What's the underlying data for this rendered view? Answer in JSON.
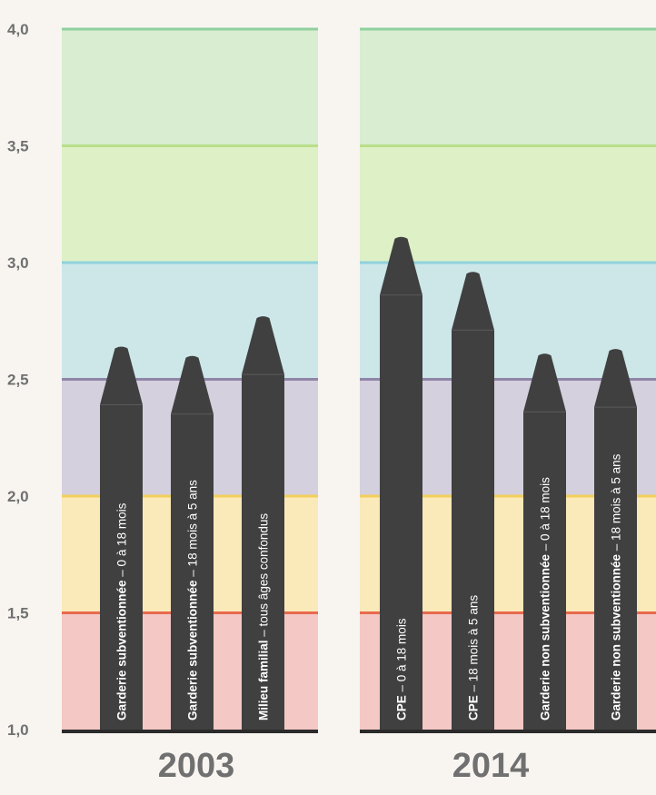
{
  "chart_data": {
    "type": "bar",
    "y_ticks": [
      "1,0",
      "1,5",
      "2,0",
      "2,5",
      "3,0",
      "3,5",
      "4,0"
    ],
    "ylim": [
      1.0,
      4.0
    ],
    "zone_colors": [
      "#f2b8b5",
      "#fbe4a6",
      "#c9c3d6",
      "#bfe2e6",
      "#d6edb7",
      "#cfe9c6"
    ],
    "zone_line_colors": [
      "#e86a4e",
      "#f2cf5a",
      "#8f86a8",
      "#8fd2dc",
      "#b9df8a",
      "#8fd19e"
    ],
    "bar_color": "#404040",
    "groups": [
      {
        "year": "2003",
        "bars": [
          {
            "bold": "Garderie subventionnée",
            "rest": " – 0 à 18 mois",
            "value": 2.64
          },
          {
            "bold": "Garderie subventionnée",
            "rest": " – 18 mois à 5 ans",
            "value": 2.6
          },
          {
            "bold": "Milieu familial",
            "rest": " – tous âges confondus",
            "value": 2.77
          }
        ]
      },
      {
        "year": "2014",
        "bars": [
          {
            "bold": "CPE",
            "rest": " – 0 à 18 mois",
            "value": 3.11
          },
          {
            "bold": "CPE",
            "rest": " – 18 mois à 5 ans",
            "value": 2.96
          },
          {
            "bold": "Garderie non subventionnée",
            "rest": " – 0 à 18 mois",
            "value": 2.61
          },
          {
            "bold": "Garderie non subventionnée",
            "rest": " – 18 mois à 5 ans",
            "value": 2.63
          }
        ]
      }
    ]
  }
}
